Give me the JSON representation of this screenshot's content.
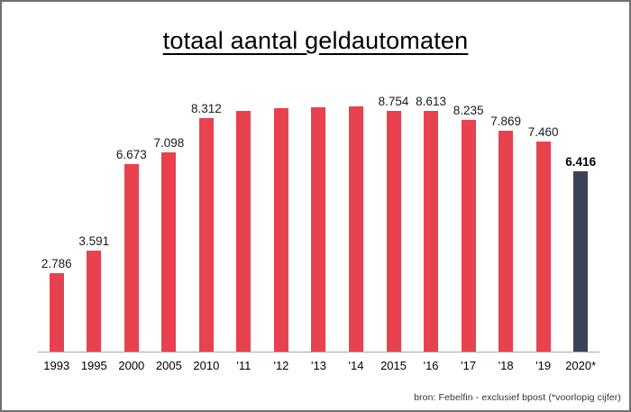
{
  "title": "totaal aantal geldautomaten",
  "source_note": "bron: Febelfin - exclusief bpost (*voorlopig cijfer)",
  "colors": {
    "bar": "#e8424f",
    "highlight_bar": "#3d4156",
    "axis_line": "#a6a6a6",
    "frame_border": "#707070",
    "label_text": "#1a1a1a"
  },
  "chart_data": {
    "type": "bar",
    "title": "totaal aantal geldautomaten",
    "categories": [
      "1993",
      "1995",
      "2000",
      "2005",
      "2010",
      "'11",
      "'12",
      "'13",
      "'14",
      "2015",
      "'16",
      "'17",
      "'18",
      "'19",
      "2020*"
    ],
    "values": [
      2786,
      3591,
      6673,
      7098,
      8312,
      8570,
      8660,
      8690,
      8740,
      8754,
      8613,
      8235,
      7869,
      7460,
      6416
    ],
    "value_labels": [
      "2.786",
      "3.591",
      "6.673",
      "7.098",
      "8.312",
      "",
      "",
      "",
      "",
      "8.754",
      "8.613",
      "8.235",
      "7.869",
      "7.460",
      "6.416"
    ],
    "highlight_index": 14,
    "xlabel": "",
    "ylabel": "",
    "ylim": [
      0,
      9140
    ],
    "grid": false,
    "legend": false,
    "annotations": [
      "bron: Febelfin - exclusief bpost (*voorlopig cijfer)",
      "*voorlopig cijfer"
    ]
  }
}
